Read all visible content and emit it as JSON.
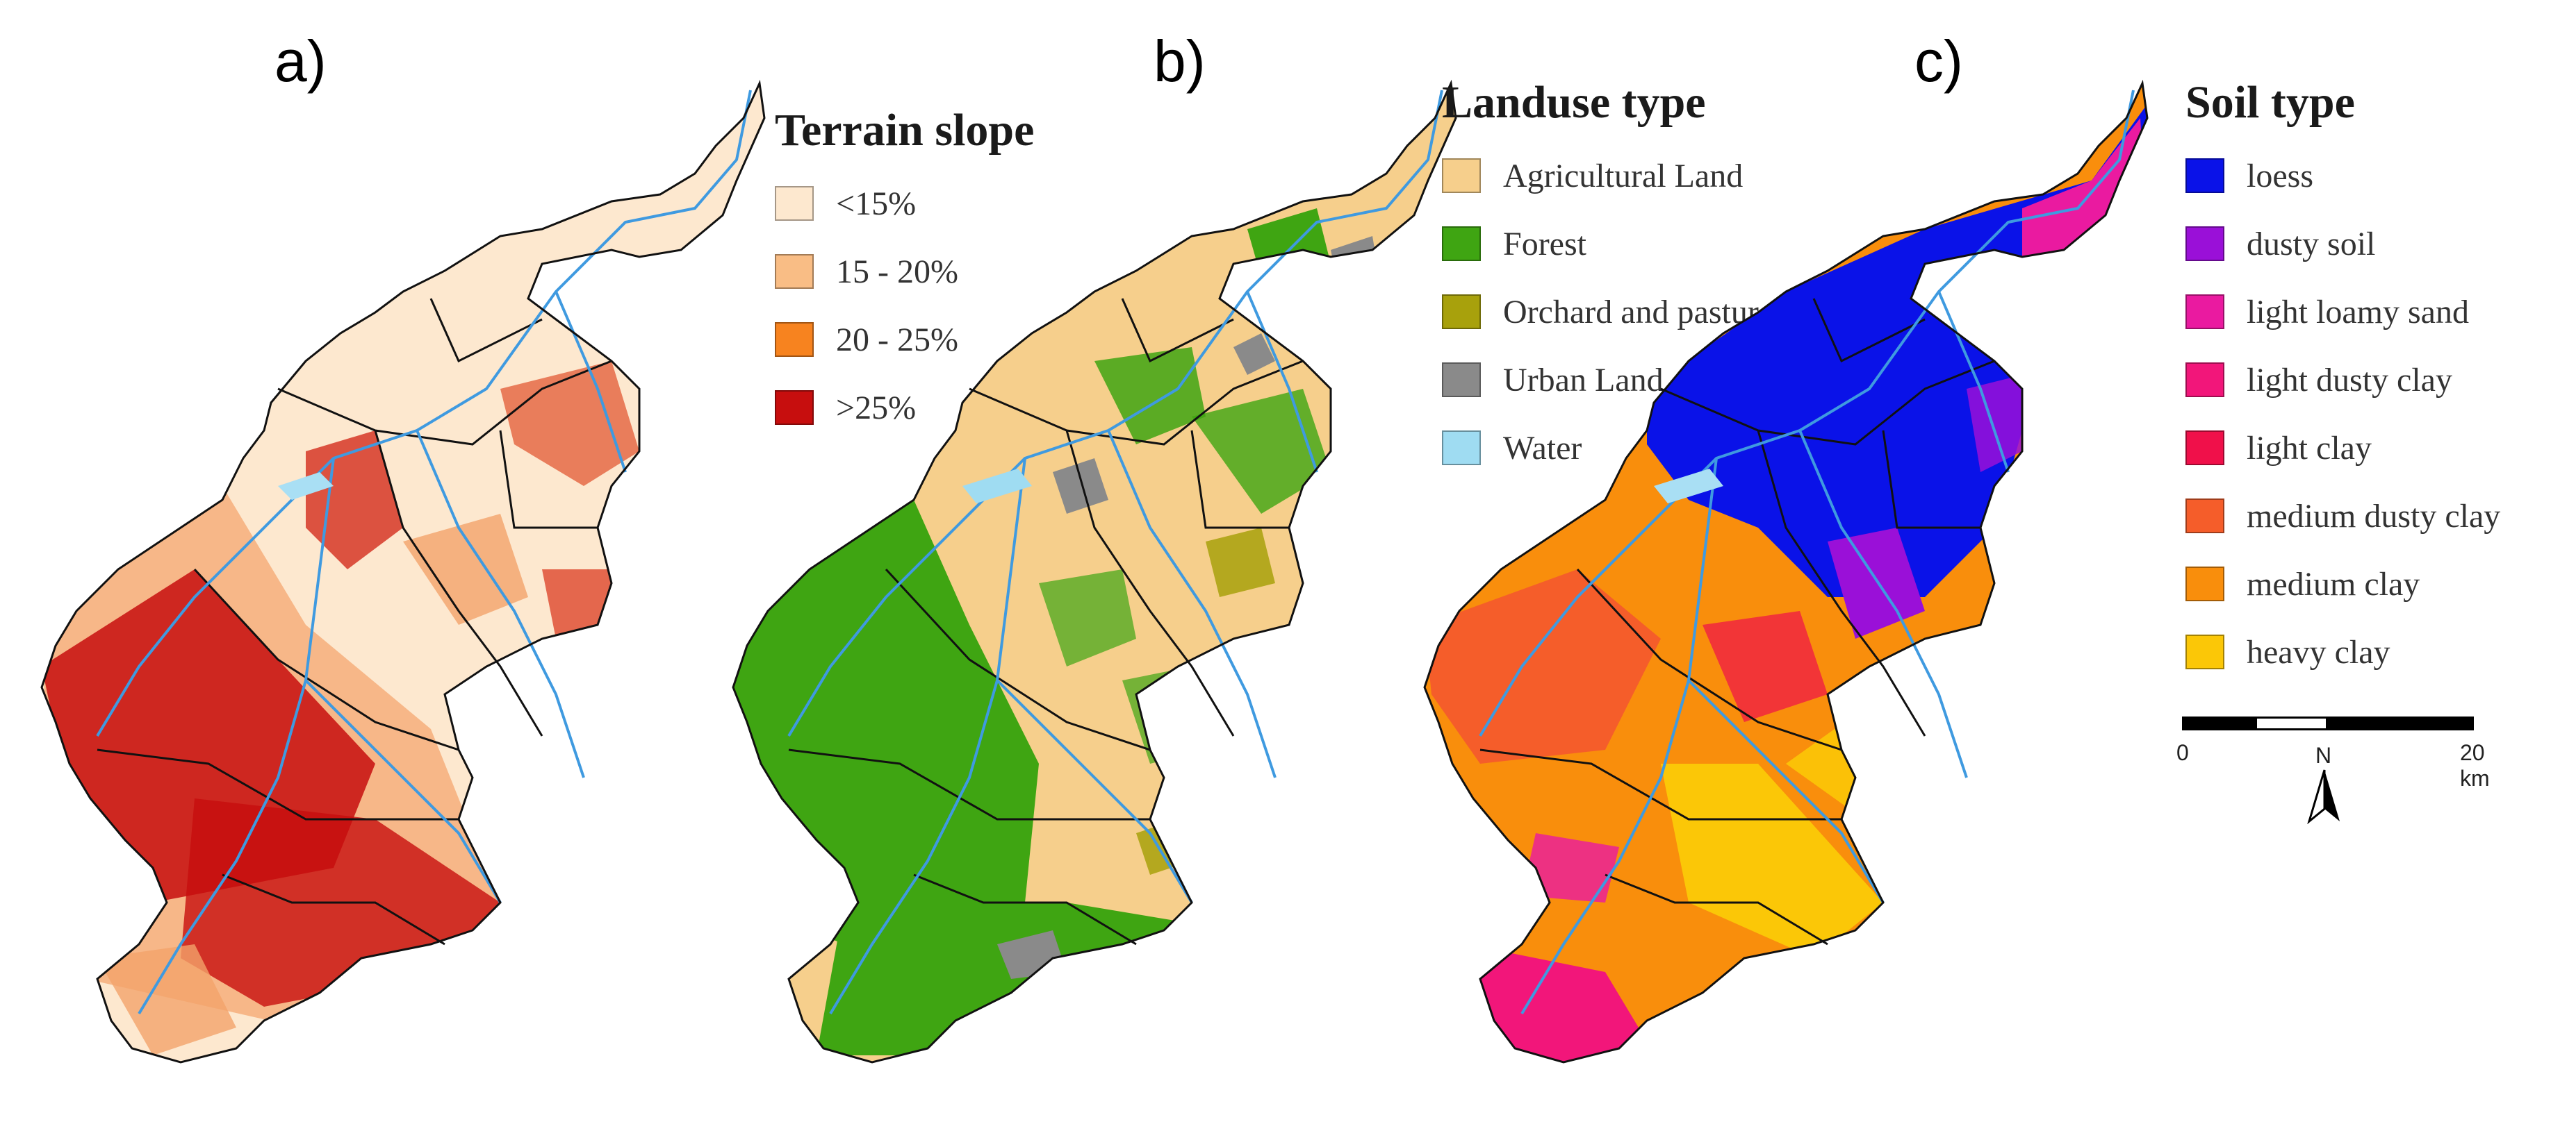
{
  "panels": [
    {
      "label": "a)",
      "legend_title": "Terrain slope",
      "legend": [
        {
          "label": "<15%",
          "color": "#fde8cf"
        },
        {
          "label": "15 - 20%",
          "color": "#f9bd85"
        },
        {
          "label": "20 - 25%",
          "color": "#f7831f"
        },
        {
          "label": ">25%",
          "color": "#c70e0e"
        }
      ]
    },
    {
      "label": "b)",
      "legend_title": "Landuse type",
      "legend": [
        {
          "label": "Agricultural Land",
          "color": "#f6cf8c"
        },
        {
          "label": "Forest",
          "color": "#3fa512"
        },
        {
          "label": "Orchard and pasture",
          "color": "#a8a10c"
        },
        {
          "label": "Urban Land",
          "color": "#8a8a8a"
        },
        {
          "label": "Water",
          "color": "#9fdcf2"
        }
      ]
    },
    {
      "label": "c)",
      "legend_title": "Soil type",
      "legend": [
        {
          "label": "loess",
          "color": "#0a12e8"
        },
        {
          "label": "dusty soil",
          "color": "#9a10d8"
        },
        {
          "label": "light loamy sand",
          "color": "#ea1aa0"
        },
        {
          "label": "light dusty clay",
          "color": "#f2167a"
        },
        {
          "label": "light clay",
          "color": "#f0104a"
        },
        {
          "label": "medium dusty clay",
          "color": "#f55d2a"
        },
        {
          "label": "medium clay",
          "color": "#f98e0c"
        },
        {
          "label": "heavy clay",
          "color": "#fbc707"
        }
      ]
    }
  ],
  "scalebar": {
    "start": "0",
    "end": "20 km",
    "north": "N"
  },
  "colors": {
    "river": "#3f9ae0",
    "boundary": "#111111",
    "lake": "#a9dff4"
  }
}
